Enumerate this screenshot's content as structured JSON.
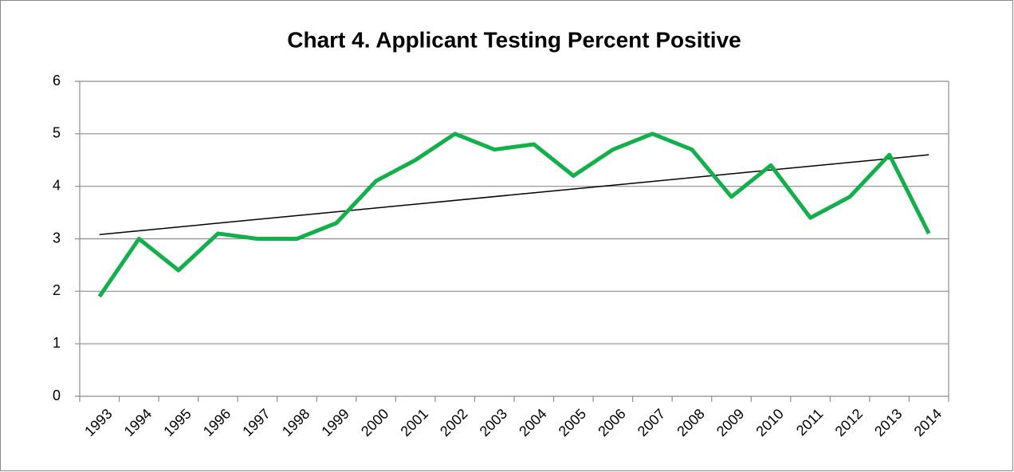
{
  "chart_data": {
    "type": "line",
    "title": "Chart 4. Applicant Testing Percent Positive",
    "categories": [
      "1993",
      "1994",
      "1995",
      "1996",
      "1997",
      "1998",
      "1999",
      "2000",
      "2001",
      "2002",
      "2003",
      "2004",
      "2005",
      "2006",
      "2007",
      "2008",
      "2009",
      "2010",
      "2011",
      "2012",
      "2013",
      "2014"
    ],
    "series": [
      {
        "color": "#12b04a",
        "values": [
          1.9,
          3.0,
          2.4,
          3.1,
          3.0,
          3.0,
          3.3,
          4.1,
          4.5,
          5.0,
          4.7,
          4.8,
          4.2,
          4.7,
          5.0,
          4.7,
          3.8,
          4.4,
          3.4,
          3.8,
          4.6,
          3.1
        ]
      }
    ],
    "trendline": {
      "color": "#000000",
      "values": [
        3.08,
        4.6
      ]
    },
    "ylim": [
      0,
      6
    ],
    "yticks": [
      0,
      1,
      2,
      3,
      4,
      5,
      6
    ],
    "grid": true
  }
}
